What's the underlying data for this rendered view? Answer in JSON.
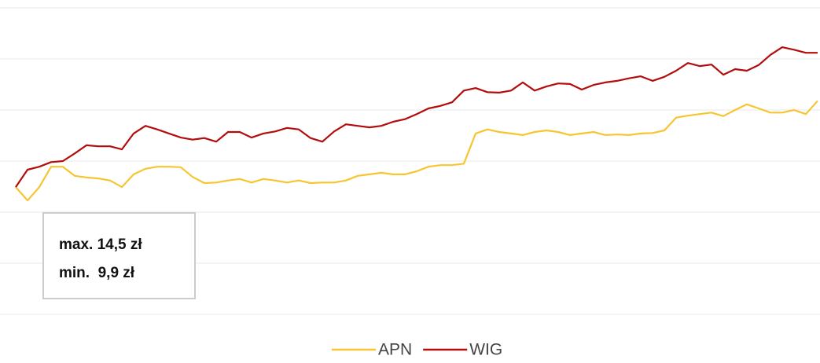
{
  "chart_data": {
    "type": "line",
    "annotations": [
      "max. 14,5 zł",
      "min.  9,9 zł"
    ],
    "ylim": [
      0,
      6
    ],
    "yticks": [
      0,
      1,
      2,
      3,
      4,
      5,
      6
    ],
    "grid": true,
    "series": [
      {
        "name": "APN",
        "color": "#f7c531",
        "values": [
          2.49,
          2.23,
          2.49,
          2.89,
          2.89,
          2.71,
          2.68,
          2.66,
          2.62,
          2.49,
          2.74,
          2.85,
          2.89,
          2.89,
          2.88,
          2.69,
          2.57,
          2.58,
          2.62,
          2.65,
          2.58,
          2.65,
          2.62,
          2.58,
          2.62,
          2.57,
          2.58,
          2.58,
          2.62,
          2.71,
          2.74,
          2.77,
          2.74,
          2.74,
          2.8,
          2.89,
          2.92,
          2.92,
          2.95,
          3.54,
          3.62,
          3.57,
          3.54,
          3.51,
          3.57,
          3.6,
          3.57,
          3.51,
          3.54,
          3.57,
          3.51,
          3.52,
          3.51,
          3.54,
          3.55,
          3.6,
          3.85,
          3.89,
          3.92,
          3.95,
          3.88,
          4.0,
          4.11,
          4.03,
          3.95,
          3.95,
          4.0,
          3.92,
          4.18
        ]
      },
      {
        "name": "WIG",
        "color": "#b30c0c",
        "values": [
          2.49,
          2.83,
          2.89,
          2.98,
          3.0,
          3.15,
          3.31,
          3.29,
          3.29,
          3.23,
          3.54,
          3.69,
          3.62,
          3.54,
          3.46,
          3.42,
          3.45,
          3.38,
          3.57,
          3.57,
          3.46,
          3.54,
          3.58,
          3.65,
          3.62,
          3.45,
          3.38,
          3.58,
          3.72,
          3.69,
          3.66,
          3.69,
          3.77,
          3.82,
          3.92,
          4.03,
          4.08,
          4.15,
          4.38,
          4.43,
          4.35,
          4.34,
          4.38,
          4.54,
          4.38,
          4.46,
          4.52,
          4.51,
          4.4,
          4.49,
          4.54,
          4.57,
          4.62,
          4.66,
          4.57,
          4.65,
          4.77,
          4.92,
          4.86,
          4.89,
          4.69,
          4.8,
          4.77,
          4.88,
          5.08,
          5.23,
          5.18,
          5.12,
          5.12
        ]
      }
    ]
  }
}
